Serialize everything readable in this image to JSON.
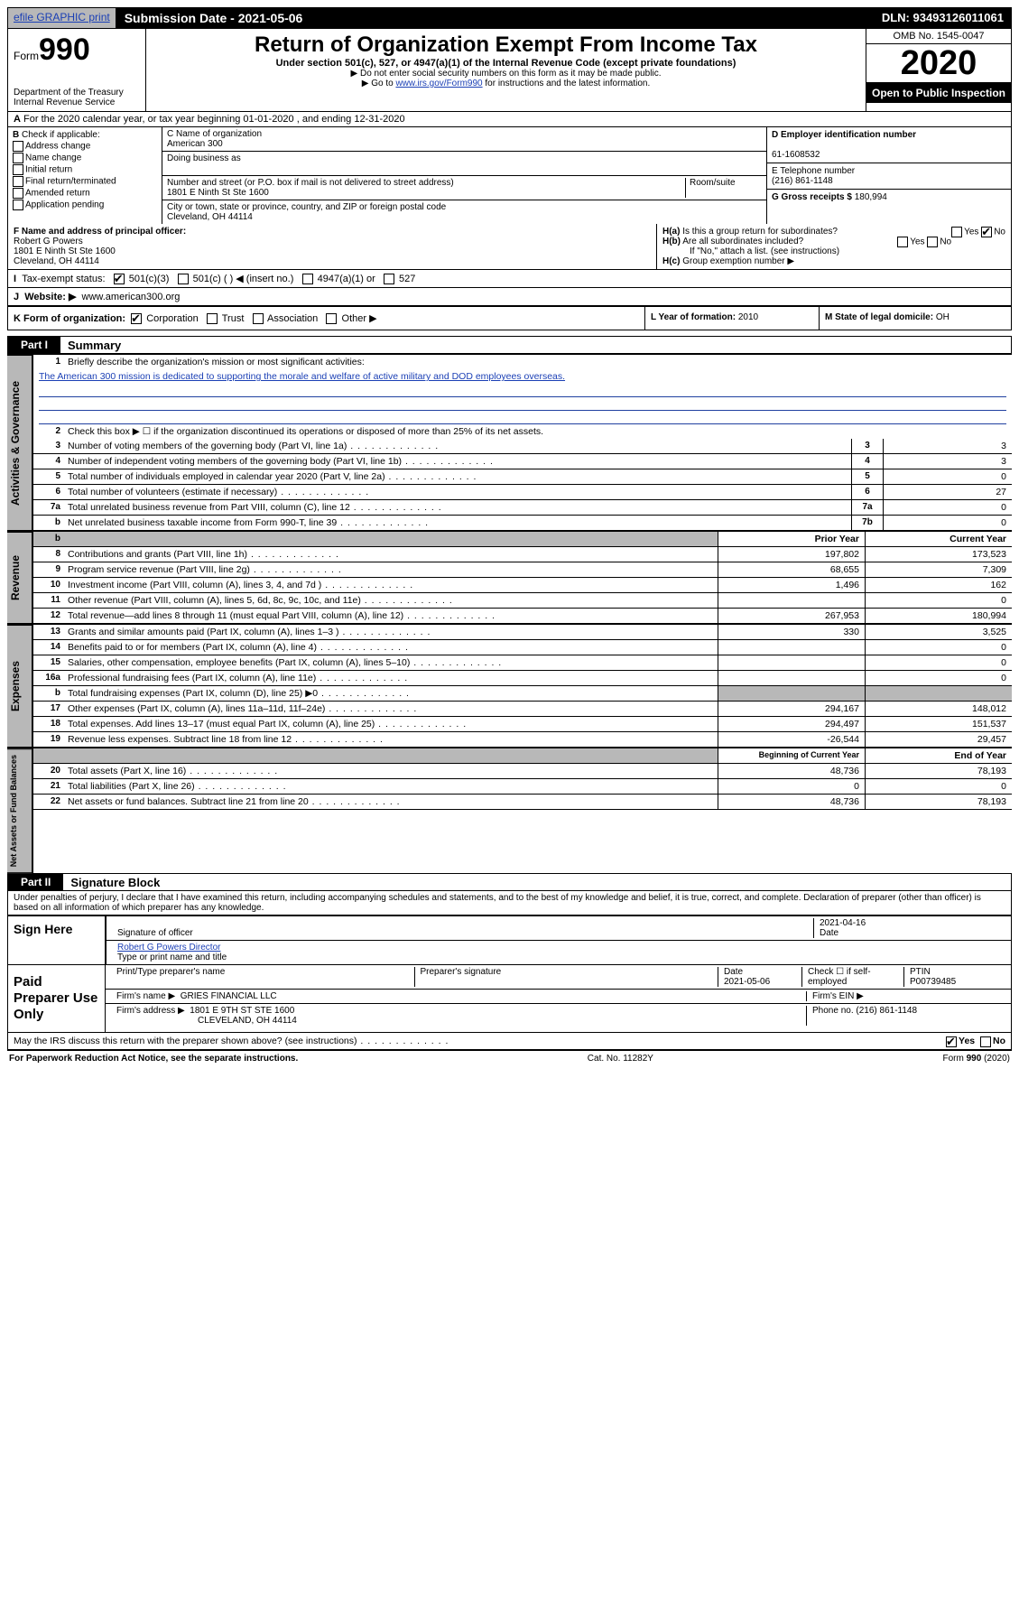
{
  "topbar": {
    "efile": "efile GRAPHIC print",
    "submission": "Submission Date - 2021-05-06",
    "dln": "DLN: 93493126011061"
  },
  "header": {
    "form_prefix": "Form",
    "form_number": "990",
    "dept": "Department of the Treasury\nInternal Revenue Service",
    "title": "Return of Organization Exempt From Income Tax",
    "subtitle": "Under section 501(c), 527, or 4947(a)(1) of the Internal Revenue Code (except private foundations)",
    "note1": "▶ Do not enter social security numbers on this form as it may be made public.",
    "note2_pre": "▶ Go to ",
    "note2_link": "www.irs.gov/Form990",
    "note2_post": " for instructions and the latest information.",
    "omb": "OMB No. 1545-0047",
    "year": "2020",
    "openpub": "Open to Public Inspection"
  },
  "A": {
    "text": "For the 2020 calendar year, or tax year beginning 01-01-2020    , and ending 12-31-2020"
  },
  "B": {
    "header": "Check if applicable:",
    "opts": [
      "Address change",
      "Name change",
      "Initial return",
      "Final return/terminated",
      "Amended return",
      "Application pending"
    ]
  },
  "C": {
    "name_label": "C Name of organization",
    "name": "American 300",
    "dba_label": "Doing business as",
    "addr_label": "Number and street (or P.O. box if mail is not delivered to street address)",
    "room_label": "Room/suite",
    "addr": "1801 E Ninth St Ste 1600",
    "city_label": "City or town, state or province, country, and ZIP or foreign postal code",
    "city": "Cleveland, OH  44114"
  },
  "D": {
    "label": "D Employer identification number",
    "val": "61-1608532"
  },
  "E": {
    "label": "E Telephone number",
    "val": "(216) 861-1148"
  },
  "G": {
    "label": "G Gross receipts $",
    "val": "180,994"
  },
  "F": {
    "label": "F  Name and address of principal officer:",
    "name": "Robert G Powers",
    "addr1": "1801 E Ninth St Ste 1600",
    "addr2": "Cleveland, OH  44114"
  },
  "H": {
    "a": "Is this a group return for subordinates?",
    "b": "Are all subordinates included?",
    "bnote": "If \"No,\" attach a list. (see instructions)",
    "c": "Group exemption number ▶"
  },
  "I": {
    "label": "Tax-exempt status:",
    "o1": "501(c)(3)",
    "o2": "501(c) (   ) ◀ (insert no.)",
    "o3": "4947(a)(1) or",
    "o4": "527"
  },
  "J": {
    "label": "Website: ▶",
    "val": "www.american300.org"
  },
  "K": {
    "label": "K Form of organization:",
    "opts": [
      "Corporation",
      "Trust",
      "Association",
      "Other ▶"
    ],
    "L_label": "L Year of formation:",
    "L_val": "2010",
    "M_label": "M State of legal domicile:",
    "M_val": "OH"
  },
  "partI": {
    "hdr": "Part I",
    "title": "Summary",
    "line1_label": "Briefly describe the organization's mission or most significant activities:",
    "line1_text": "The American 300 mission is dedicated to supporting the morale and welfare of active military and DOD employees overseas.",
    "line2": "Check this box ▶ ☐  if the organization discontinued its operations or disposed of more than 25% of its net assets.",
    "governance": [
      {
        "n": "3",
        "t": "Number of voting members of the governing body (Part VI, line 1a)",
        "c": "3",
        "v": "3"
      },
      {
        "n": "4",
        "t": "Number of independent voting members of the governing body (Part VI, line 1b)",
        "c": "4",
        "v": "3"
      },
      {
        "n": "5",
        "t": "Total number of individuals employed in calendar year 2020 (Part V, line 2a)",
        "c": "5",
        "v": "0"
      },
      {
        "n": "6",
        "t": "Total number of volunteers (estimate if necessary)",
        "c": "6",
        "v": "27"
      },
      {
        "n": "7a",
        "t": "Total unrelated business revenue from Part VIII, column (C), line 12",
        "c": "7a",
        "v": "0"
      },
      {
        "n": "b",
        "t": "Net unrelated business taxable income from Form 990-T, line 39",
        "c": "7b",
        "v": "0"
      }
    ],
    "prior_hdr": "Prior Year",
    "current_hdr": "Current Year",
    "revenue": [
      {
        "n": "8",
        "t": "Contributions and grants (Part VIII, line 1h)",
        "p": "197,802",
        "c": "173,523"
      },
      {
        "n": "9",
        "t": "Program service revenue (Part VIII, line 2g)",
        "p": "68,655",
        "c": "7,309"
      },
      {
        "n": "10",
        "t": "Investment income (Part VIII, column (A), lines 3, 4, and 7d )",
        "p": "1,496",
        "c": "162"
      },
      {
        "n": "11",
        "t": "Other revenue (Part VIII, column (A), lines 5, 6d, 8c, 9c, 10c, and 11e)",
        "p": "",
        "c": "0"
      },
      {
        "n": "12",
        "t": "Total revenue—add lines 8 through 11 (must equal Part VIII, column (A), line 12)",
        "p": "267,953",
        "c": "180,994"
      }
    ],
    "expenses": [
      {
        "n": "13",
        "t": "Grants and similar amounts paid (Part IX, column (A), lines 1–3 )",
        "p": "330",
        "c": "3,525"
      },
      {
        "n": "14",
        "t": "Benefits paid to or for members (Part IX, column (A), line 4)",
        "p": "",
        "c": "0"
      },
      {
        "n": "15",
        "t": "Salaries, other compensation, employee benefits (Part IX, column (A), lines 5–10)",
        "p": "",
        "c": "0"
      },
      {
        "n": "16a",
        "t": "Professional fundraising fees (Part IX, column (A), line 11e)",
        "p": "",
        "c": "0"
      },
      {
        "n": "b",
        "t": "Total fundraising expenses (Part IX, column (D), line 25) ▶0",
        "p": "shade",
        "c": "shade"
      },
      {
        "n": "17",
        "t": "Other expenses (Part IX, column (A), lines 11a–11d, 11f–24e)",
        "p": "294,167",
        "c": "148,012"
      },
      {
        "n": "18",
        "t": "Total expenses. Add lines 13–17 (must equal Part IX, column (A), line 25)",
        "p": "294,497",
        "c": "151,537"
      },
      {
        "n": "19",
        "t": "Revenue less expenses. Subtract line 18 from line 12",
        "p": "-26,544",
        "c": "29,457"
      }
    ],
    "begin_hdr": "Beginning of Current Year",
    "end_hdr": "End of Year",
    "netassets": [
      {
        "n": "20",
        "t": "Total assets (Part X, line 16)",
        "p": "48,736",
        "c": "78,193"
      },
      {
        "n": "21",
        "t": "Total liabilities (Part X, line 26)",
        "p": "0",
        "c": "0"
      },
      {
        "n": "22",
        "t": "Net assets or fund balances. Subtract line 21 from line 20",
        "p": "48,736",
        "c": "78,193"
      }
    ],
    "sides": {
      "gov": "Activities & Governance",
      "rev": "Revenue",
      "exp": "Expenses",
      "net": "Net Assets or Fund Balances"
    }
  },
  "partII": {
    "hdr": "Part II",
    "title": "Signature Block",
    "decl": "Under penalties of perjury, I declare that I have examined this return, including accompanying schedules and statements, and to the best of my knowledge and belief, it is true, correct, and complete. Declaration of preparer (other than officer) is based on all information of which preparer has any knowledge."
  },
  "sign": {
    "here": "Sign Here",
    "sig_officer": "Signature of officer",
    "date": "2021-04-16",
    "date_label": "Date",
    "name": "Robert G Powers  Director",
    "name_label": "Type or print name and title"
  },
  "paid": {
    "label": "Paid Preparer Use Only",
    "h1": "Print/Type preparer's name",
    "h2": "Preparer's signature",
    "h3": "Date",
    "h3v": "2021-05-06",
    "h4": "Check ☐ if self-employed",
    "h5": "PTIN",
    "h5v": "P00739485",
    "firm_name_l": "Firm's name      ▶",
    "firm_name": "GRIES FINANCIAL LLC",
    "firm_ein_l": "Firm's EIN ▶",
    "firm_addr_l": "Firm's address ▶",
    "firm_addr1": "1801 E 9TH ST STE 1600",
    "firm_addr2": "CLEVELAND, OH  44114",
    "phone_l": "Phone no.",
    "phone": "(216) 861-1148"
  },
  "discuss": {
    "text": "May the IRS discuss this return with the preparer shown above? (see instructions)",
    "yes": "Yes",
    "no": "No"
  },
  "footer": {
    "left": "For Paperwork Reduction Act Notice, see the separate instructions.",
    "mid": "Cat. No. 11282Y",
    "right": "Form 990 (2020)"
  }
}
